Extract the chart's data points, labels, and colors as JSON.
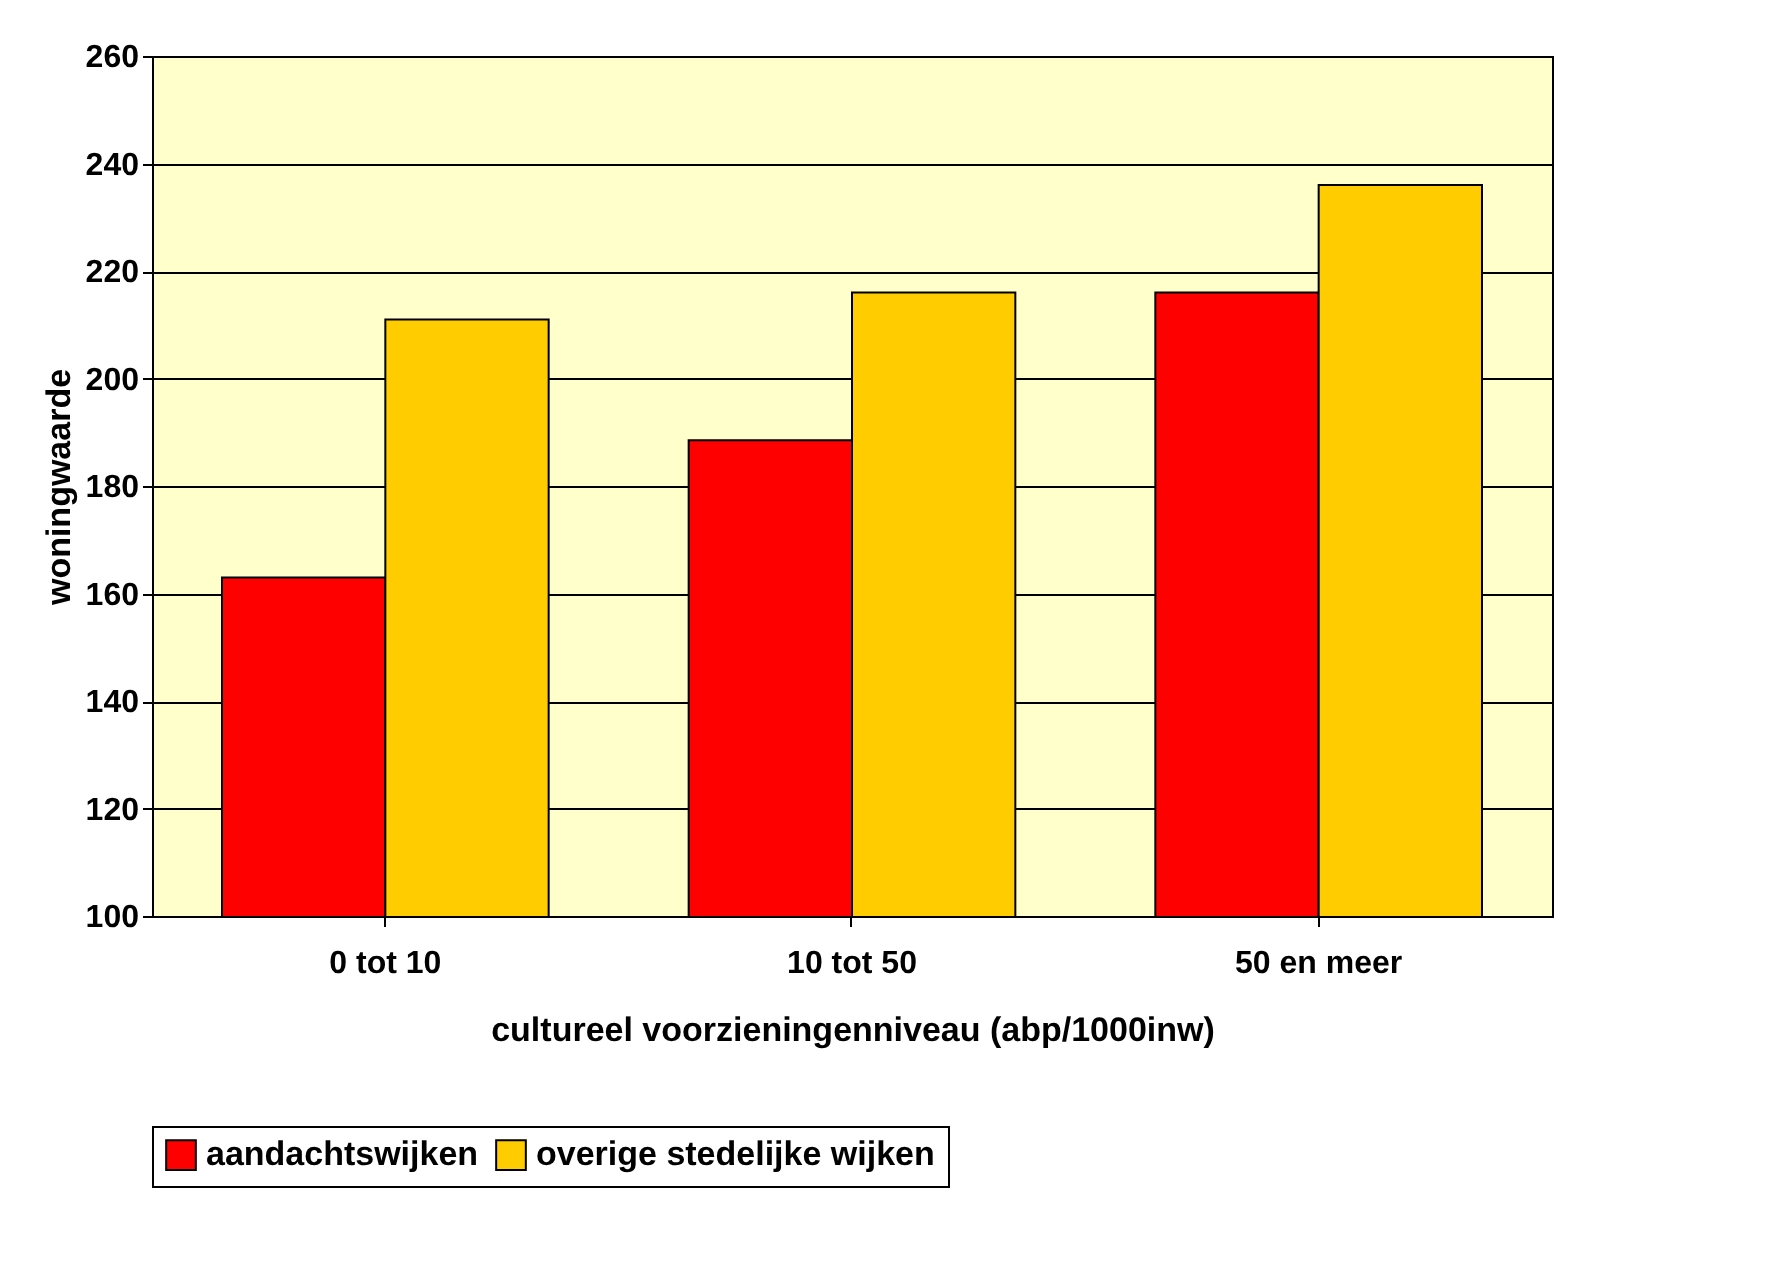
{
  "chart_data": {
    "type": "bar",
    "xlabel": "cultureel voorzieningenniveau (abp/1000inw)",
    "ylabel": "woningwaarde",
    "categories": [
      "0 tot 10",
      "10 tot 50",
      "50 en meer"
    ],
    "series": [
      {
        "name": "aandachtswijken",
        "color": "#ff0000",
        "values": [
          163,
          188.5,
          216
        ]
      },
      {
        "name": "overige stedelijke wijken",
        "color": "#ffcc00",
        "values": [
          211,
          216,
          236
        ]
      }
    ],
    "ylim": [
      100,
      260
    ],
    "yticks": [
      100,
      120,
      140,
      160,
      180,
      200,
      220,
      240,
      260
    ],
    "grid": "y",
    "legend": "bottom left"
  }
}
